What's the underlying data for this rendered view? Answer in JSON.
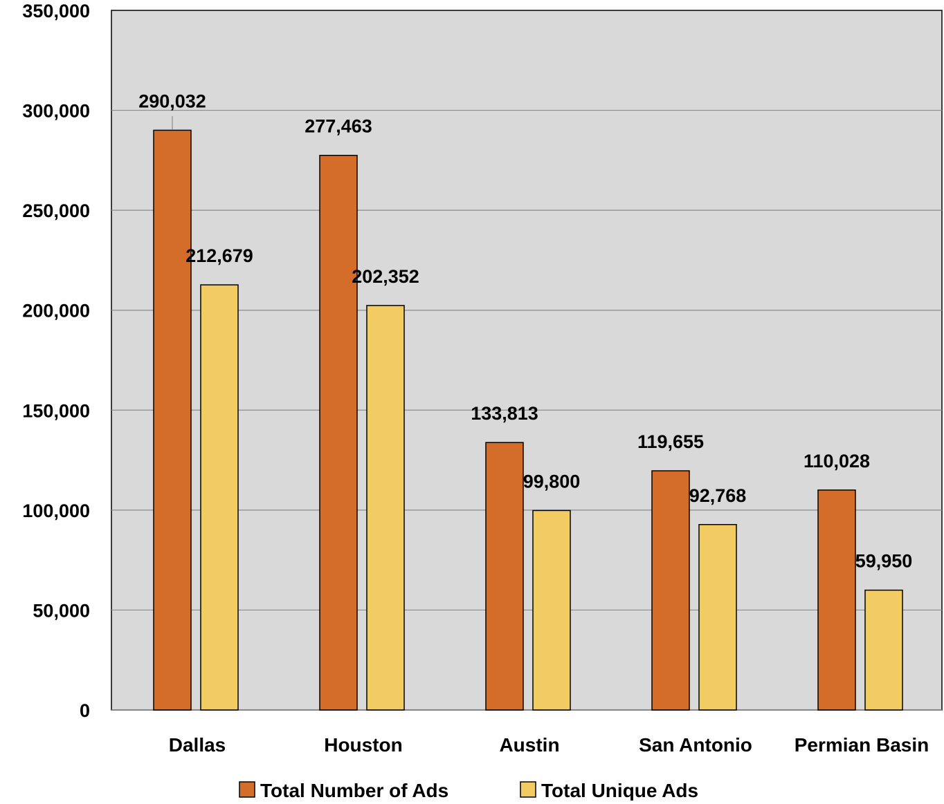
{
  "chart_data": {
    "type": "bar",
    "title": "",
    "xlabel": "",
    "ylabel": "",
    "categories": [
      "Dallas",
      "Houston",
      "Austin",
      "San Antonio",
      "Permian Basin"
    ],
    "series": [
      {
        "name": "Total Number of Ads",
        "color": "#D46D2A",
        "values": [
          290032,
          277463,
          133813,
          119655,
          110028
        ],
        "labels": [
          "290,032",
          "277,463",
          "133,813",
          "119,655",
          "110,028"
        ]
      },
      {
        "name": "Total Unique Ads",
        "color": "#F2CC63",
        "values": [
          212679,
          202352,
          99800,
          92768,
          59950
        ],
        "labels": [
          "212,679",
          "202,352",
          "99,800",
          "92,768",
          "59,950"
        ]
      }
    ],
    "ylim": [
      0,
      350000
    ],
    "yticks": [
      0,
      50000,
      100000,
      150000,
      200000,
      250000,
      300000,
      350000
    ],
    "ytick_labels": [
      "0",
      "50,000",
      "100,000",
      "150,000",
      "200,000",
      "250,000",
      "300,000",
      "350,000"
    ],
    "grid": true,
    "plot_background": "#D9D9D9",
    "legend_position": "bottom"
  }
}
